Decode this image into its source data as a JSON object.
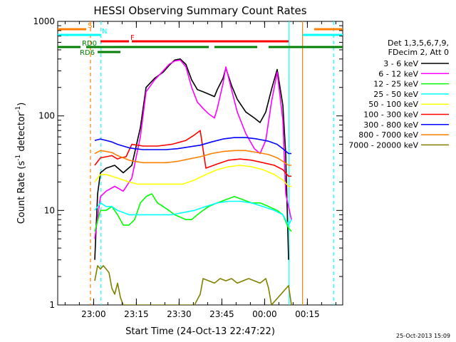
{
  "chart_data": {
    "type": "line",
    "title": "HESSI Observing Summary Count Rates",
    "xlabel": "Start Time (24-Oct-13 22:47:22)",
    "ylabel_main": "Count Rate (s",
    "ylabel_sup1": "-1",
    "ylabel_mid": " detector",
    "ylabel_sup2": "-1",
    "ylabel_end": ")",
    "y_scale": "log",
    "ylim": [
      1,
      1000
    ],
    "xlim_minutes": [
      0,
      100
    ],
    "x_ticks": [
      {
        "label": "23:00",
        "minute": 12.6
      },
      {
        "label": "23:15",
        "minute": 27.6
      },
      {
        "label": "23:30",
        "minute": 42.6
      },
      {
        "label": "23:45",
        "minute": 57.6
      },
      {
        "label": "00:00",
        "minute": 72.6
      },
      {
        "label": "00:15",
        "minute": 87.6
      }
    ],
    "y_ticks": [
      {
        "label": "1",
        "value": 1
      },
      {
        "label": "10",
        "value": 10
      },
      {
        "label": "100",
        "value": 100
      },
      {
        "label": "1000",
        "value": 1000
      }
    ],
    "legend_header": [
      "Det 1,3,5,6,7,9,",
      "FDecim 2, Att 0"
    ],
    "series": [
      {
        "name": "3 - 6 keV",
        "color": "#000000",
        "points": [
          [
            13,
            3
          ],
          [
            14,
            15
          ],
          [
            15,
            25
          ],
          [
            17,
            28
          ],
          [
            20,
            30
          ],
          [
            23,
            25
          ],
          [
            26,
            30
          ],
          [
            29,
            75
          ],
          [
            31,
            200
          ],
          [
            34,
            250
          ],
          [
            37,
            290
          ],
          [
            39,
            340
          ],
          [
            41,
            390
          ],
          [
            43,
            400
          ],
          [
            45,
            350
          ],
          [
            47,
            240
          ],
          [
            49,
            190
          ],
          [
            51,
            180
          ],
          [
            53,
            170
          ],
          [
            55,
            160
          ],
          [
            56,
            190
          ],
          [
            58,
            250
          ],
          [
            59,
            320
          ],
          [
            61,
            210
          ],
          [
            63,
            150
          ],
          [
            66,
            110
          ],
          [
            69,
            95
          ],
          [
            71,
            85
          ],
          [
            73,
            110
          ],
          [
            75,
            190
          ],
          [
            77,
            310
          ],
          [
            79,
            130
          ],
          [
            80,
            40
          ],
          [
            81,
            3
          ]
        ]
      },
      {
        "name": "6 - 12 keV",
        "color": "#ff00ff",
        "points": [
          [
            13,
            5
          ],
          [
            15,
            14
          ],
          [
            17,
            16
          ],
          [
            20,
            18
          ],
          [
            23,
            16
          ],
          [
            26,
            22
          ],
          [
            29,
            60
          ],
          [
            31,
            180
          ],
          [
            34,
            240
          ],
          [
            37,
            300
          ],
          [
            39,
            350
          ],
          [
            41,
            380
          ],
          [
            43,
            390
          ],
          [
            45,
            330
          ],
          [
            47,
            200
          ],
          [
            49,
            140
          ],
          [
            51,
            120
          ],
          [
            53,
            105
          ],
          [
            55,
            95
          ],
          [
            56,
            120
          ],
          [
            58,
            220
          ],
          [
            59,
            330
          ],
          [
            61,
            190
          ],
          [
            63,
            110
          ],
          [
            66,
            65
          ],
          [
            69,
            45
          ],
          [
            71,
            40
          ],
          [
            73,
            55
          ],
          [
            75,
            140
          ],
          [
            77,
            290
          ],
          [
            79,
            90
          ],
          [
            80,
            15
          ],
          [
            82,
            8
          ]
        ]
      },
      {
        "name": "12 - 25 keV",
        "color": "#00ff00",
        "points": [
          [
            13,
            6
          ],
          [
            15,
            10
          ],
          [
            17,
            10
          ],
          [
            19,
            11
          ],
          [
            21,
            9
          ],
          [
            23,
            7
          ],
          [
            25,
            7
          ],
          [
            27,
            8
          ],
          [
            29,
            12
          ],
          [
            31,
            14
          ],
          [
            33,
            15
          ],
          [
            35,
            12
          ],
          [
            37,
            11
          ],
          [
            39,
            10
          ],
          [
            41,
            9
          ],
          [
            43,
            8.5
          ],
          [
            45,
            8
          ],
          [
            47,
            8
          ],
          [
            49,
            9
          ],
          [
            51,
            10
          ],
          [
            53,
            11
          ],
          [
            56,
            12
          ],
          [
            59,
            13
          ],
          [
            62,
            14
          ],
          [
            65,
            13
          ],
          [
            68,
            12
          ],
          [
            71,
            12
          ],
          [
            74,
            11
          ],
          [
            77,
            10
          ],
          [
            79,
            9
          ],
          [
            81,
            6.5
          ],
          [
            82,
            6
          ]
        ]
      },
      {
        "name": "25 - 50 keV",
        "color": "#00ffff",
        "points": [
          [
            13,
            10
          ],
          [
            15,
            12
          ],
          [
            17,
            11
          ],
          [
            19,
            11
          ],
          [
            21,
            10
          ],
          [
            23,
            9.5
          ],
          [
            25,
            9
          ],
          [
            28,
            9
          ],
          [
            32,
            9
          ],
          [
            36,
            9
          ],
          [
            40,
            9
          ],
          [
            44,
            9.5
          ],
          [
            48,
            10
          ],
          [
            52,
            11
          ],
          [
            56,
            12
          ],
          [
            60,
            12.5
          ],
          [
            64,
            12.5
          ],
          [
            68,
            12
          ],
          [
            72,
            11
          ],
          [
            76,
            10
          ],
          [
            79,
            9
          ],
          [
            81,
            7
          ],
          [
            82,
            8
          ]
        ]
      },
      {
        "name": "50 - 100 keV",
        "color": "#ffff00",
        "points": [
          [
            13,
            20
          ],
          [
            15,
            24
          ],
          [
            17,
            24
          ],
          [
            19,
            23
          ],
          [
            21,
            22
          ],
          [
            23,
            21
          ],
          [
            25,
            20
          ],
          [
            28,
            19
          ],
          [
            32,
            19
          ],
          [
            36,
            19
          ],
          [
            40,
            19
          ],
          [
            44,
            19
          ],
          [
            48,
            21
          ],
          [
            52,
            24
          ],
          [
            56,
            27
          ],
          [
            60,
            29
          ],
          [
            64,
            30
          ],
          [
            68,
            29
          ],
          [
            72,
            27
          ],
          [
            76,
            24
          ],
          [
            79,
            21
          ],
          [
            81,
            18
          ],
          [
            82,
            18
          ]
        ]
      },
      {
        "name": "100 - 300 keV",
        "color": "#ff0000",
        "points": [
          [
            13,
            30
          ],
          [
            15,
            36
          ],
          [
            17,
            37
          ],
          [
            19,
            38
          ],
          [
            21,
            35
          ],
          [
            22,
            36
          ],
          [
            24,
            37
          ],
          [
            26,
            50
          ],
          [
            30,
            48
          ],
          [
            35,
            48
          ],
          [
            40,
            50
          ],
          [
            45,
            55
          ],
          [
            48,
            63
          ],
          [
            50,
            70
          ],
          [
            52,
            28
          ],
          [
            56,
            31
          ],
          [
            60,
            34
          ],
          [
            64,
            35
          ],
          [
            68,
            34
          ],
          [
            72,
            32
          ],
          [
            76,
            30
          ],
          [
            79,
            27
          ],
          [
            81,
            23
          ],
          [
            82,
            23
          ]
        ]
      },
      {
        "name": "300 - 800 keV",
        "color": "#0000ff",
        "points": [
          [
            13,
            55
          ],
          [
            15,
            57
          ],
          [
            17,
            55
          ],
          [
            19,
            53
          ],
          [
            21,
            50
          ],
          [
            23,
            48
          ],
          [
            25,
            46
          ],
          [
            27,
            45
          ],
          [
            30,
            44
          ],
          [
            34,
            44
          ],
          [
            38,
            44
          ],
          [
            42,
            45
          ],
          [
            46,
            47
          ],
          [
            50,
            49
          ],
          [
            54,
            53
          ],
          [
            58,
            57
          ],
          [
            62,
            59
          ],
          [
            66,
            59
          ],
          [
            70,
            57
          ],
          [
            74,
            54
          ],
          [
            77,
            50
          ],
          [
            79,
            45
          ],
          [
            81,
            40
          ],
          [
            82,
            40
          ]
        ]
      },
      {
        "name": "800 - 7000 keV",
        "color": "#ff8000",
        "points": [
          [
            13,
            40
          ],
          [
            15,
            43
          ],
          [
            17,
            42
          ],
          [
            19,
            41
          ],
          [
            21,
            38
          ],
          [
            23,
            36
          ],
          [
            25,
            34
          ],
          [
            27,
            33
          ],
          [
            30,
            32
          ],
          [
            34,
            32
          ],
          [
            38,
            32
          ],
          [
            42,
            33
          ],
          [
            46,
            35
          ],
          [
            50,
            37
          ],
          [
            54,
            40
          ],
          [
            58,
            42
          ],
          [
            62,
            43
          ],
          [
            66,
            43
          ],
          [
            70,
            41
          ],
          [
            74,
            39
          ],
          [
            77,
            36
          ],
          [
            79,
            33
          ],
          [
            81,
            30
          ],
          [
            82,
            30
          ]
        ]
      },
      {
        "name": "7000 - 20000 keV",
        "color": "#808000",
        "points": [
          [
            13,
            1.8
          ],
          [
            14,
            2.6
          ],
          [
            15,
            2.4
          ],
          [
            16,
            2.6
          ],
          [
            17,
            2.4
          ],
          [
            18,
            2.2
          ],
          [
            19,
            1.5
          ],
          [
            20,
            1.3
          ],
          [
            21,
            1.7
          ],
          [
            22,
            1.2
          ],
          [
            23,
            1
          ],
          [
            48,
            1
          ],
          [
            50,
            1.3
          ],
          [
            51,
            1.9
          ],
          [
            53,
            1.8
          ],
          [
            55,
            1.7
          ],
          [
            57,
            1.9
          ],
          [
            59,
            1.8
          ],
          [
            61,
            1.9
          ],
          [
            63,
            1.7
          ],
          [
            65,
            1.8
          ],
          [
            67,
            1.9
          ],
          [
            69,
            1.8
          ],
          [
            71,
            1.7
          ],
          [
            73,
            1.9
          ],
          [
            74,
            1.5
          ],
          [
            75,
            1
          ],
          [
            81,
            1.6
          ],
          [
            82,
            1
          ]
        ]
      }
    ],
    "flag_bars": [
      {
        "label": "S",
        "color": "#ff8000",
        "segments": [
          [
            0,
            10
          ],
          [
            90,
            100
          ]
        ]
      },
      {
        "label": "N",
        "color": "#00ffff",
        "segments": [
          [
            0,
            15
          ],
          [
            86,
            100
          ]
        ]
      },
      {
        "label": "F",
        "color": "#ff0000",
        "segments": [
          [
            15,
            25
          ],
          [
            26,
            81
          ]
        ]
      },
      {
        "label": "RD0",
        "color": "#008000",
        "segments": [
          [
            0,
            8
          ],
          [
            10,
            53
          ],
          [
            55,
            70
          ],
          [
            74,
            100
          ]
        ]
      },
      {
        "label": "RD6",
        "color": "#008000",
        "segments": [
          [
            14,
            22
          ]
        ]
      }
    ],
    "vlines": [
      {
        "minute": 11.5,
        "color": "#ff8000",
        "style": "dashed"
      },
      {
        "minute": 15.2,
        "color": "#00ffff",
        "style": "dashed"
      },
      {
        "minute": 81.2,
        "color": "#00ffff",
        "style": "solid"
      },
      {
        "minute": 85.9,
        "color": "#ff8000",
        "style": "solid"
      },
      {
        "minute": 96.8,
        "color": "#00ffff",
        "style": "dashed"
      }
    ],
    "timestamp": "25-Oct-2013 15:09"
  }
}
